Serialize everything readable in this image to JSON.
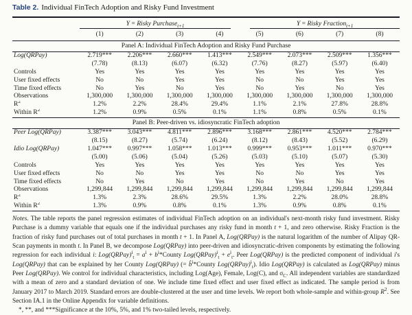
{
  "title": {
    "label": "Table 2.",
    "text": "Individual FinTech Adoption and Risky Fund Investment"
  },
  "table": {
    "column_groups": [
      {
        "name": "risky-purchase-group",
        "html": "<i>Y</i> = <i>Risky Purchase<sub>t+1</sub></i>"
      },
      {
        "name": "risky-fraction-group",
        "html": "<i>Y</i> = <i>Risky Fraction<sub>t+1</sub></i>"
      }
    ],
    "column_numbers": [
      "(1)",
      "(2)",
      "(3)",
      "(4)",
      "(5)",
      "(6)",
      "(7)",
      "(8)"
    ],
    "panels": [
      {
        "header": "Panel A: Individual FinTech Adoption and Risky Fund Purchase",
        "rows": [
          {
            "label_html": "<i>Log(QRPay)</i>",
            "values": [
              "2.719***",
              "2.206***",
              "2.660***",
              "1.413***",
              "2.549***",
              "2.073***",
              "2.509***",
              "1.356***"
            ]
          },
          {
            "label_html": "",
            "values": [
              "(7.78)",
              "(8.13)",
              "(6.07)",
              "(6.32)",
              "(7.76)",
              "(8.27)",
              "(5.97)",
              "(6.40)"
            ]
          },
          {
            "label_html": "Controls",
            "values": [
              "Yes",
              "Yes",
              "Yes",
              "Yes",
              "Yes",
              "Yes",
              "Yes",
              "Yes"
            ]
          },
          {
            "label_html": "User fixed effects",
            "values": [
              "No",
              "No",
              "Yes",
              "Yes",
              "No",
              "No",
              "Yes",
              "Yes"
            ]
          },
          {
            "label_html": "Time fixed effects",
            "values": [
              "No",
              "Yes",
              "No",
              "Yes",
              "No",
              "Yes",
              "No",
              "Yes"
            ]
          },
          {
            "label_html": "Observations",
            "values": [
              "1,300,000",
              "1,300,000",
              "1,300,000",
              "1,300,000",
              "1,300,000",
              "1,300,000",
              "1,300,000",
              "1,300,000"
            ]
          },
          {
            "label_html": "R<sup>2</sup>",
            "values": [
              "1.2%",
              "2.2%",
              "28.4%",
              "29.4%",
              "1.1%",
              "2.1%",
              "27.8%",
              "28.8%"
            ]
          },
          {
            "label_html": "Within R<sup>2</sup>",
            "values": [
              "1.2%",
              "0.9%",
              "0.5%",
              "0.1%",
              "1.1%",
              "0.8%",
              "0.5%",
              "0.1%"
            ]
          }
        ]
      },
      {
        "header": "Panel B: Peer-driven vs. idiosyncratic FinTech adoption",
        "rows": [
          {
            "label_html": "<i>Peer Log(QRPay)</i>",
            "values": [
              "3.387***",
              "3.043***",
              "4.811***",
              "2.896***",
              "3.168***",
              "2.861***",
              "4.520***",
              "2.784***"
            ]
          },
          {
            "label_html": "",
            "values": [
              "(8.15)",
              "(8.27)",
              "(5.74)",
              "(6.24)",
              "(8.12)",
              "(8.43)",
              "(5.52)",
              "(6.29)"
            ]
          },
          {
            "label_html": "<i>Idio Log(QRPay)</i>",
            "values": [
              "1.047***",
              "0.997***",
              "1.058***",
              "1.013***",
              "0.999***",
              "0.953***",
              "1.011***",
              "0.970***"
            ]
          },
          {
            "label_html": "",
            "values": [
              "(5.00)",
              "(5.06)",
              "(5.04)",
              "(5.26)",
              "(5.03)",
              "(5.10)",
              "(5.07)",
              "(5.30)"
            ]
          },
          {
            "label_html": "Controls",
            "values": [
              "Yes",
              "Yes",
              "Yes",
              "Yes",
              "Yes",
              "Yes",
              "Yes",
              "Yes"
            ]
          },
          {
            "label_html": "User fixed effects",
            "values": [
              "No",
              "No",
              "Yes",
              "Yes",
              "No",
              "No",
              "Yes",
              "Yes"
            ]
          },
          {
            "label_html": "Time fixed effects",
            "values": [
              "No",
              "Yes",
              "No",
              "Yes",
              "No",
              "Yes",
              "No",
              "Yes"
            ]
          },
          {
            "label_html": "Observations",
            "values": [
              "1,299,844",
              "1,299,844",
              "1,299,844",
              "1,299,844",
              "1,299,844",
              "1,299,844",
              "1,299,844",
              "1,299,844"
            ]
          },
          {
            "label_html": "R<sup>2</sup>",
            "values": [
              "1.3%",
              "2.3%",
              "28.6%",
              "29.5%",
              "1.3%",
              "2.2%",
              "28.0%",
              "28.8%"
            ]
          },
          {
            "label_html": "Within R<sup>2</sup>",
            "values": [
              "1.3%",
              "0.9%",
              "0.8%",
              "0.1%",
              "1.3%",
              "0.9%",
              "0.8%",
              "0.1%"
            ]
          }
        ]
      }
    ]
  },
  "notes": {
    "body_html": "<i>Notes.</i> The table reports the panel regression estimates of individual FinTech adoption on an individual's next-month risky fund investment. Risky Purchase is a dummy variable that equals one if the individual purchases any risky fund in month <i>t</i> + 1, and zero otherwise. Risky Fraction is the fraction of risky fund purchases out of total purchases in month <i>t</i> + 1. In Panel A, <i>Log(QRPay)</i> is the natural logarithm of the number of Alipay QR-Scan payments in month <i>t</i>. In Panel B, we decompose <i>Log(QRPay)</i> into peer-driven and idiosyncratic-driven components by estimating the following regression for each individual <i>i</i>: <i>Log(QRPay)</i><sup>i</sup><sub>t</sub> = <i>a</i><sup>i</sup> + <i>b</i><sup>i</sup>*County <i>Log(QRPay)</i><sup>i</sup><sub>t</sub> + <i>e</i><sup>i</sup><sub>t</sub>. Peer <i>Log(QRPay)</i> is the predicted component of individual <i>i</i>'s <i>Log(QRPay)</i> that can be explained by her County <i>Log(QRPay)</i> (= <i>b̂</i><sup>i</sup>*County <i>Log(QRPay)</i><sup>i</sup><sub>t</sub>). Idio <i>Log(QRPay)</i> is calculated as <i>Log(QRPay)</i> minus Peer <i>Log(QRPay)</i>. We control for individual characteristics, including Log(Age), Female, Log(C), and σ<sub>C</sub>. All independent variables are standardized with a mean of zero and a standard deviation of one. We include time fixed effect and user fixed effect as indicated. The sample period is from January 2017 to March 2019. Standard errors are double-clustered at the user and time levels. We report both whole-sample and within-group <i>R</i><sup>2</sup>. See Section IA.1 in the Online Appendix for variable definitions.",
    "significance": "*, **, and ***Significance at the 10%, 5%, and 1% two-tailed levels, respectively."
  }
}
